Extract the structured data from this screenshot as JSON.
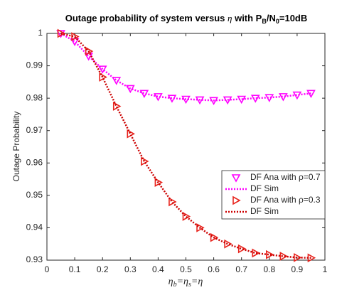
{
  "chart_data": {
    "type": "line",
    "title": [
      "Outage probability of system versus ",
      "η",
      " with P",
      "B",
      "/N",
      "0",
      "=10dB"
    ],
    "xlabel": [
      "η",
      "b",
      "=η",
      "s",
      "=η"
    ],
    "ylabel": "Outage Probability",
    "x": [
      0.05,
      0.1,
      0.15,
      0.2,
      0.25,
      0.3,
      0.35,
      0.4,
      0.45,
      0.5,
      0.55,
      0.6,
      0.65,
      0.7,
      0.75,
      0.8,
      0.85,
      0.9,
      0.95
    ],
    "series": [
      {
        "name": "DF Ana with ρ=0.7",
        "color": "#ff00ff",
        "marker": "triangle-down",
        "values": [
          1.0,
          0.9975,
          0.993,
          0.989,
          0.9855,
          0.983,
          0.9815,
          0.9805,
          0.98,
          0.9797,
          0.9795,
          0.9793,
          0.9795,
          0.9797,
          0.98,
          0.9802,
          0.9805,
          0.981,
          0.9815
        ]
      },
      {
        "name": "DF Sim",
        "color": "#ff00ff",
        "linestyle": "dotted",
        "values": [
          1.0,
          0.9975,
          0.993,
          0.989,
          0.9855,
          0.983,
          0.9815,
          0.9805,
          0.98,
          0.9797,
          0.9795,
          0.9793,
          0.9795,
          0.9797,
          0.98,
          0.9802,
          0.9805,
          0.981,
          0.9815
        ]
      },
      {
        "name": "DF Ana with ρ=0.3",
        "color": "#e8231c",
        "marker": "triangle-right",
        "values": [
          1.0,
          0.999,
          0.9945,
          0.9865,
          0.9775,
          0.969,
          0.9605,
          0.954,
          0.948,
          0.9435,
          0.94,
          0.937,
          0.935,
          0.9335,
          0.9322,
          0.9317,
          0.9312,
          0.9308,
          0.9307
        ]
      },
      {
        "name": "DF Sim",
        "color": "#cc0000",
        "linestyle": "dotted",
        "values": [
          1.0,
          0.999,
          0.9945,
          0.9865,
          0.9775,
          0.969,
          0.9605,
          0.954,
          0.948,
          0.9435,
          0.94,
          0.937,
          0.935,
          0.9335,
          0.9322,
          0.9317,
          0.9312,
          0.9308,
          0.9307
        ]
      }
    ],
    "xlim": [
      0,
      1
    ],
    "xticks": [
      0,
      0.1,
      0.2,
      0.3,
      0.4,
      0.5,
      0.6,
      0.7,
      0.8,
      0.9,
      1
    ],
    "ylim": [
      0.93,
      1
    ],
    "yticks": [
      0.93,
      0.94,
      0.95,
      0.96,
      0.97,
      0.98,
      0.99,
      1
    ],
    "grid": false,
    "legend": "right"
  }
}
